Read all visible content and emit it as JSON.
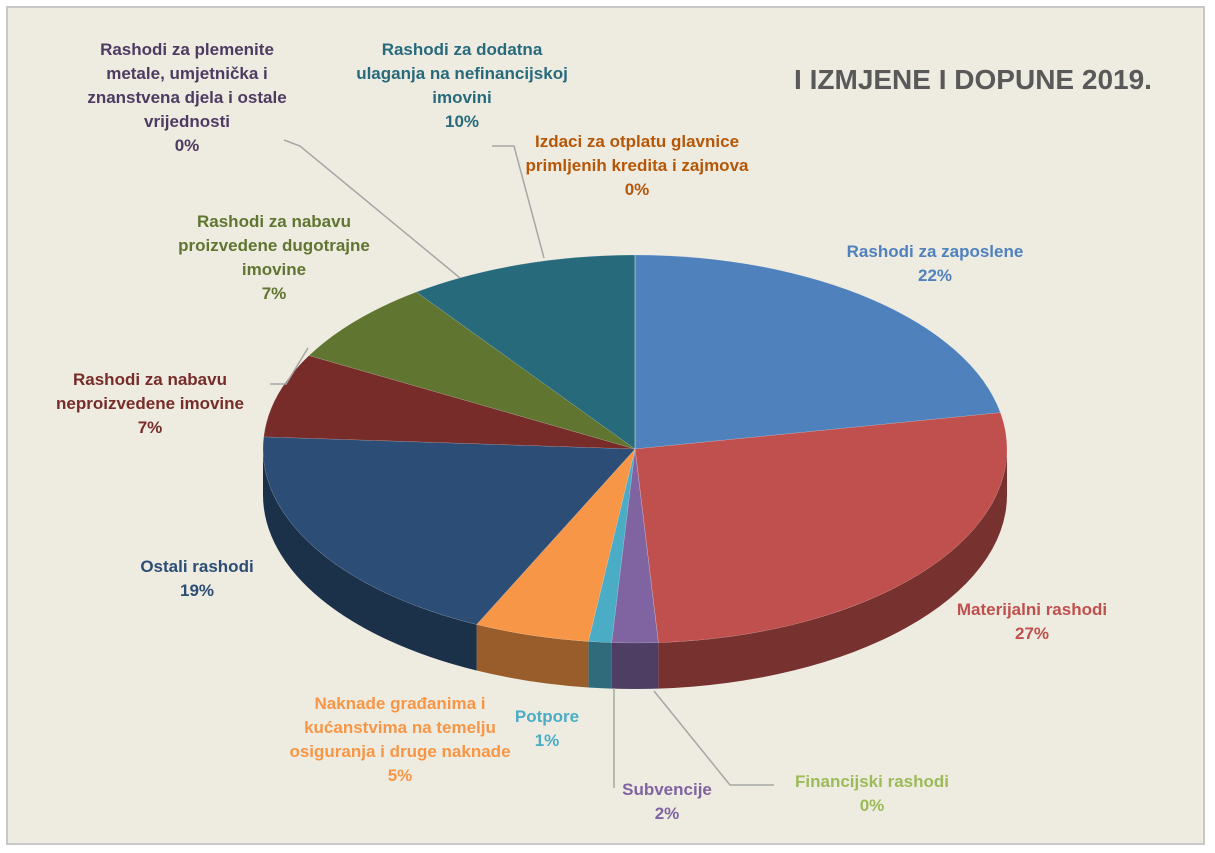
{
  "chart_data": {
    "type": "pie3d",
    "title": "I IZMJENE I DOPUNE 2019.",
    "categories": [
      "Rashodi za zaposlene",
      "Materijalni rashodi",
      "Financijski rashodi",
      "Subvencije",
      "Potpore",
      "Naknade građanima i kućanstvima na temelju osiguranja i druge naknade",
      "Ostali rashodi",
      "Rashodi za nabavu neproizvedene imovine",
      "Rashodi za nabavu proizvedene dugotrajne imovine",
      "Rashodi za dodatna ulaganja na nefinancijskoj imovini",
      "Izdaci za otplatu glavnice primljenih kredita i zajmova",
      "Rashodi za plemenite metale, umjetnička i znanstvena djela i ostale vrijednosti"
    ],
    "values": [
      22,
      27,
      0,
      2,
      1,
      5,
      19,
      7,
      7,
      10,
      0,
      0
    ],
    "value_labels": [
      "22%",
      "27%",
      "0%",
      "2%",
      "1%",
      "5%",
      "19%",
      "7%",
      "7%",
      "10%",
      "0%",
      "0%"
    ],
    "colors": [
      "#4f81bd",
      "#c0504d",
      "#9bbb59",
      "#8064a2",
      "#4bacc6",
      "#f79646",
      "#2c4d75",
      "#772c2a",
      "#5f7530",
      "#276a7c",
      "#b65708",
      "#4d3b62"
    ]
  }
}
